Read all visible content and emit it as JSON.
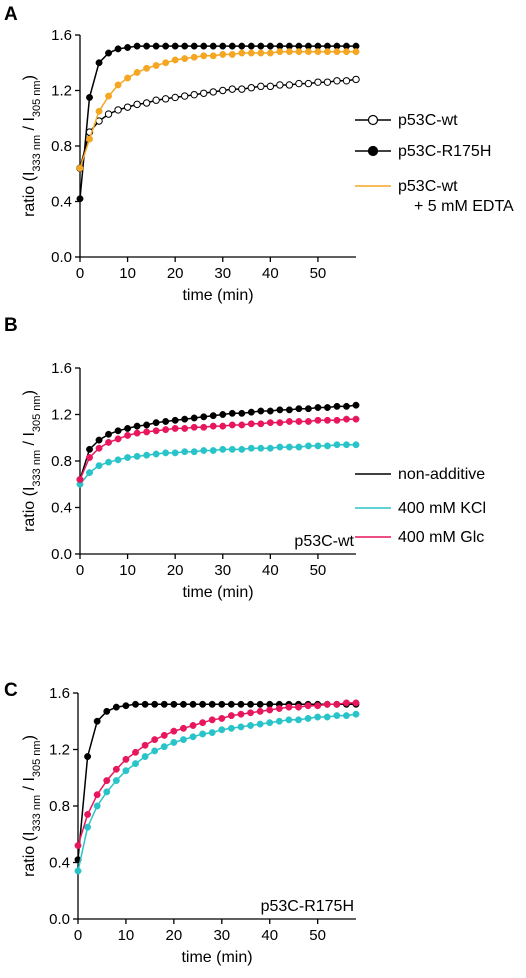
{
  "chart_data": [
    {
      "panel_letter": "A",
      "type": "line",
      "xlabel": "time (min)",
      "ylabel": {
        "prefix": "ratio (I",
        "sub1": "333 nm",
        "mid": " / I",
        "sub2": "305 nm",
        "suffix": ")"
      },
      "xlim": [
        0,
        58
      ],
      "ylim": [
        0,
        1.6
      ],
      "xticks": [
        0,
        10,
        20,
        30,
        40,
        50
      ],
      "yticks": [
        0.0,
        0.4,
        0.8,
        1.2,
        1.6
      ],
      "ytick_labels": [
        "0.0",
        "0.4",
        "0.8",
        "1.2",
        "1.6"
      ],
      "panel_label": "",
      "legend_position": "right",
      "series": [
        {
          "name": "p53C-wt",
          "color": "#000000",
          "marker": "open-circle",
          "x": [
            0,
            2,
            4,
            6,
            8,
            10,
            12,
            14,
            16,
            18,
            20,
            22,
            24,
            26,
            28,
            30,
            32,
            34,
            36,
            38,
            40,
            42,
            44,
            46,
            48,
            50,
            52,
            54,
            56,
            58
          ],
          "values": [
            0.64,
            0.9,
            0.98,
            1.03,
            1.06,
            1.08,
            1.1,
            1.11,
            1.13,
            1.14,
            1.15,
            1.16,
            1.17,
            1.18,
            1.19,
            1.2,
            1.21,
            1.21,
            1.22,
            1.23,
            1.23,
            1.24,
            1.24,
            1.25,
            1.25,
            1.26,
            1.26,
            1.27,
            1.27,
            1.28
          ]
        },
        {
          "name": "p53C-R175H",
          "color": "#000000",
          "marker": "filled-circle",
          "x": [
            0,
            2,
            4,
            6,
            8,
            10,
            12,
            14,
            16,
            18,
            20,
            22,
            24,
            26,
            28,
            30,
            32,
            34,
            36,
            38,
            40,
            42,
            44,
            46,
            48,
            50,
            52,
            54,
            56,
            58
          ],
          "values": [
            0.42,
            1.15,
            1.4,
            1.47,
            1.5,
            1.51,
            1.52,
            1.52,
            1.52,
            1.52,
            1.52,
            1.52,
            1.52,
            1.52,
            1.52,
            1.52,
            1.52,
            1.52,
            1.52,
            1.52,
            1.52,
            1.52,
            1.52,
            1.52,
            1.52,
            1.52,
            1.52,
            1.52,
            1.52,
            1.52
          ]
        },
        {
          "name": "p53C-wt",
          "name2": "+ 5 mM EDTA",
          "color": "#F5A623",
          "marker": "filled-circle",
          "x": [
            0,
            2,
            4,
            6,
            8,
            10,
            12,
            14,
            16,
            18,
            20,
            22,
            24,
            26,
            28,
            30,
            32,
            34,
            36,
            38,
            40,
            42,
            44,
            46,
            48,
            50,
            52,
            54,
            56,
            58
          ],
          "values": [
            0.64,
            0.85,
            1.05,
            1.16,
            1.24,
            1.29,
            1.33,
            1.36,
            1.38,
            1.4,
            1.42,
            1.43,
            1.44,
            1.45,
            1.45,
            1.46,
            1.46,
            1.47,
            1.47,
            1.47,
            1.47,
            1.48,
            1.48,
            1.48,
            1.48,
            1.48,
            1.48,
            1.48,
            1.48,
            1.48
          ]
        }
      ]
    },
    {
      "panel_letter": "B",
      "type": "line",
      "xlabel": "time (min)",
      "ylabel": {
        "prefix": "ratio (I",
        "sub1": "333 nm",
        "mid": " / I",
        "sub2": "305 nm",
        "suffix": ")"
      },
      "xlim": [
        0,
        58
      ],
      "ylim": [
        0,
        1.6
      ],
      "xticks": [
        0,
        10,
        20,
        30,
        40,
        50
      ],
      "yticks": [
        0.0,
        0.4,
        0.8,
        1.2,
        1.6
      ],
      "ytick_labels": [
        "0.0",
        "0.4",
        "0.8",
        "1.2",
        "1.6"
      ],
      "panel_label": "p53C-wt",
      "legend_position": "right",
      "series": [
        {
          "name": "non-additive",
          "color": "#000000",
          "marker": "filled-circle",
          "x": [
            0,
            2,
            4,
            6,
            8,
            10,
            12,
            14,
            16,
            18,
            20,
            22,
            24,
            26,
            28,
            30,
            32,
            34,
            36,
            38,
            40,
            42,
            44,
            46,
            48,
            50,
            52,
            54,
            56,
            58
          ],
          "values": [
            0.64,
            0.9,
            0.98,
            1.03,
            1.06,
            1.08,
            1.1,
            1.11,
            1.13,
            1.14,
            1.15,
            1.16,
            1.17,
            1.18,
            1.19,
            1.2,
            1.21,
            1.21,
            1.22,
            1.23,
            1.23,
            1.24,
            1.24,
            1.25,
            1.25,
            1.26,
            1.26,
            1.27,
            1.27,
            1.28
          ]
        },
        {
          "name": "400 mM KCl",
          "color": "#29C4C9",
          "marker": "filled-circle",
          "x": [
            0,
            2,
            4,
            6,
            8,
            10,
            12,
            14,
            16,
            18,
            20,
            22,
            24,
            26,
            28,
            30,
            32,
            34,
            36,
            38,
            40,
            42,
            44,
            46,
            48,
            50,
            52,
            54,
            56,
            58
          ],
          "values": [
            0.6,
            0.7,
            0.76,
            0.79,
            0.81,
            0.83,
            0.84,
            0.85,
            0.86,
            0.87,
            0.87,
            0.88,
            0.88,
            0.89,
            0.89,
            0.9,
            0.9,
            0.9,
            0.91,
            0.91,
            0.91,
            0.92,
            0.92,
            0.92,
            0.93,
            0.93,
            0.93,
            0.94,
            0.94,
            0.94
          ]
        },
        {
          "name": "400 mM Glc",
          "color": "#E8175D",
          "marker": "filled-circle",
          "x": [
            0,
            2,
            4,
            6,
            8,
            10,
            12,
            14,
            16,
            18,
            20,
            22,
            24,
            26,
            28,
            30,
            32,
            34,
            36,
            38,
            40,
            42,
            44,
            46,
            48,
            50,
            52,
            54,
            56,
            58
          ],
          "values": [
            0.64,
            0.83,
            0.91,
            0.96,
            0.99,
            1.02,
            1.04,
            1.05,
            1.06,
            1.07,
            1.08,
            1.08,
            1.09,
            1.09,
            1.1,
            1.1,
            1.11,
            1.11,
            1.12,
            1.12,
            1.13,
            1.13,
            1.14,
            1.14,
            1.14,
            1.15,
            1.15,
            1.15,
            1.16,
            1.16
          ]
        }
      ]
    },
    {
      "panel_letter": "C",
      "type": "line",
      "xlabel": "time (min)",
      "ylabel": {
        "prefix": "ratio (I",
        "sub1": "333 nm",
        "mid": " / I",
        "sub2": "305 nm",
        "suffix": ")"
      },
      "xlim": [
        0,
        58
      ],
      "ylim": [
        0,
        1.6
      ],
      "xticks": [
        0,
        10,
        20,
        30,
        40,
        50
      ],
      "yticks": [
        0.0,
        0.4,
        0.8,
        1.2,
        1.6
      ],
      "ytick_labels": [
        "0.0",
        "0.4",
        "0.8",
        "1.2",
        "1.6"
      ],
      "panel_label": "p53C-R175H",
      "legend_position": "none",
      "series": [
        {
          "color": "#000000",
          "marker": "filled-circle",
          "x": [
            0,
            2,
            4,
            6,
            8,
            10,
            12,
            14,
            16,
            18,
            20,
            22,
            24,
            26,
            28,
            30,
            32,
            34,
            36,
            38,
            40,
            42,
            44,
            46,
            48,
            50,
            52,
            54,
            56,
            58
          ],
          "values": [
            0.42,
            1.15,
            1.4,
            1.47,
            1.5,
            1.51,
            1.52,
            1.52,
            1.52,
            1.52,
            1.52,
            1.52,
            1.52,
            1.52,
            1.52,
            1.52,
            1.52,
            1.52,
            1.52,
            1.52,
            1.52,
            1.52,
            1.52,
            1.52,
            1.52,
            1.52,
            1.52,
            1.52,
            1.52,
            1.52
          ]
        },
        {
          "color": "#29C4C9",
          "marker": "filled-circle",
          "x": [
            0,
            2,
            4,
            6,
            8,
            10,
            12,
            14,
            16,
            18,
            20,
            22,
            24,
            26,
            28,
            30,
            32,
            34,
            36,
            38,
            40,
            42,
            44,
            46,
            48,
            50,
            52,
            54,
            56,
            58
          ],
          "values": [
            0.34,
            0.65,
            0.8,
            0.9,
            0.98,
            1.05,
            1.1,
            1.15,
            1.19,
            1.22,
            1.25,
            1.27,
            1.29,
            1.31,
            1.32,
            1.34,
            1.35,
            1.36,
            1.37,
            1.38,
            1.39,
            1.4,
            1.41,
            1.41,
            1.42,
            1.43,
            1.43,
            1.44,
            1.44,
            1.45
          ]
        },
        {
          "color": "#E8175D",
          "marker": "filled-circle",
          "x": [
            0,
            2,
            4,
            6,
            8,
            10,
            12,
            14,
            16,
            18,
            20,
            22,
            24,
            26,
            28,
            30,
            32,
            34,
            36,
            38,
            40,
            42,
            44,
            46,
            48,
            50,
            52,
            54,
            56,
            58
          ],
          "values": [
            0.52,
            0.74,
            0.88,
            0.98,
            1.06,
            1.13,
            1.18,
            1.23,
            1.27,
            1.3,
            1.33,
            1.35,
            1.37,
            1.39,
            1.41,
            1.42,
            1.44,
            1.45,
            1.46,
            1.47,
            1.48,
            1.49,
            1.5,
            1.5,
            1.51,
            1.51,
            1.52,
            1.52,
            1.53,
            1.53
          ]
        }
      ]
    }
  ]
}
